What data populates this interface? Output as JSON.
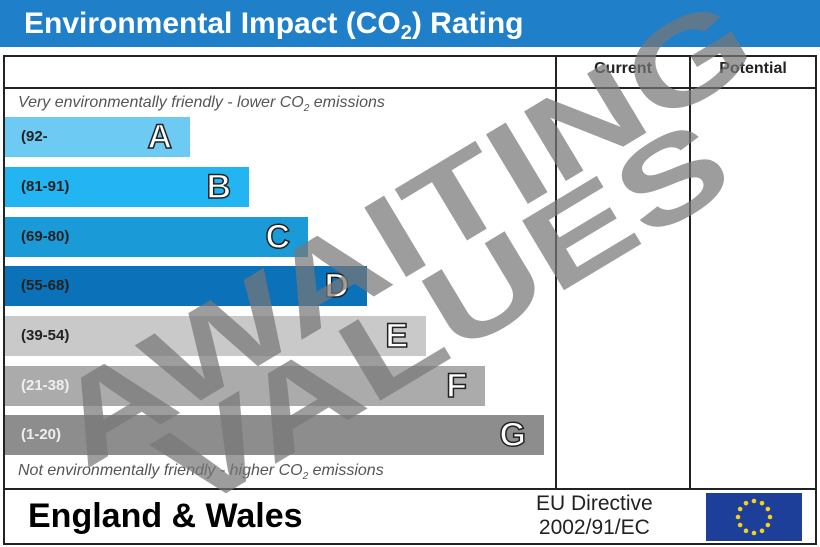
{
  "header": {
    "title_prefix": "Environmental Impact (CO",
    "title_sub": "2",
    "title_suffix": ") Rating"
  },
  "columns": {
    "current": "Current",
    "potential": "Potential"
  },
  "notes": {
    "top_prefix": "Very environmentally friendly - lower CO",
    "top_sub": "2",
    "top_suffix": " emissions",
    "bottom_prefix": "Not environmentally friendly - higher CO",
    "bottom_sub": "2",
    "bottom_suffix": " emissions"
  },
  "chart_data": {
    "type": "bar",
    "bands": [
      {
        "letter": "A",
        "range": "(92-",
        "color": "#6ccaf3",
        "range_color": "#222"
      },
      {
        "letter": "B",
        "range": "(81-91)",
        "color": "#22b5f1",
        "range_color": "#222"
      },
      {
        "letter": "C",
        "range": "(69-80)",
        "color": "#1a9ad7",
        "range_color": "#222"
      },
      {
        "letter": "D",
        "range": "(55-68)",
        "color": "#0b71b9",
        "range_color": "#222"
      },
      {
        "letter": "E",
        "range": "(39-54)",
        "color": "#c9c9c9",
        "range_color": "#222"
      },
      {
        "letter": "F",
        "range": "(21-38)",
        "color": "#ababab",
        "range_color": "#eee"
      },
      {
        "letter": "G",
        "range": "(1-20)",
        "color": "#8d8d8d",
        "range_color": "#eee"
      }
    ],
    "current": null,
    "potential": null
  },
  "watermark": {
    "line1": "AWAITING",
    "line2": "VALUES"
  },
  "footer": {
    "region": "England & Wales",
    "directive_line1": "EU Directive",
    "directive_line2": "2002/91/EC"
  },
  "colors": {
    "title_bar": "#1f7fc9",
    "flag": "#1d3f9a",
    "stars": "#f2d21a"
  }
}
